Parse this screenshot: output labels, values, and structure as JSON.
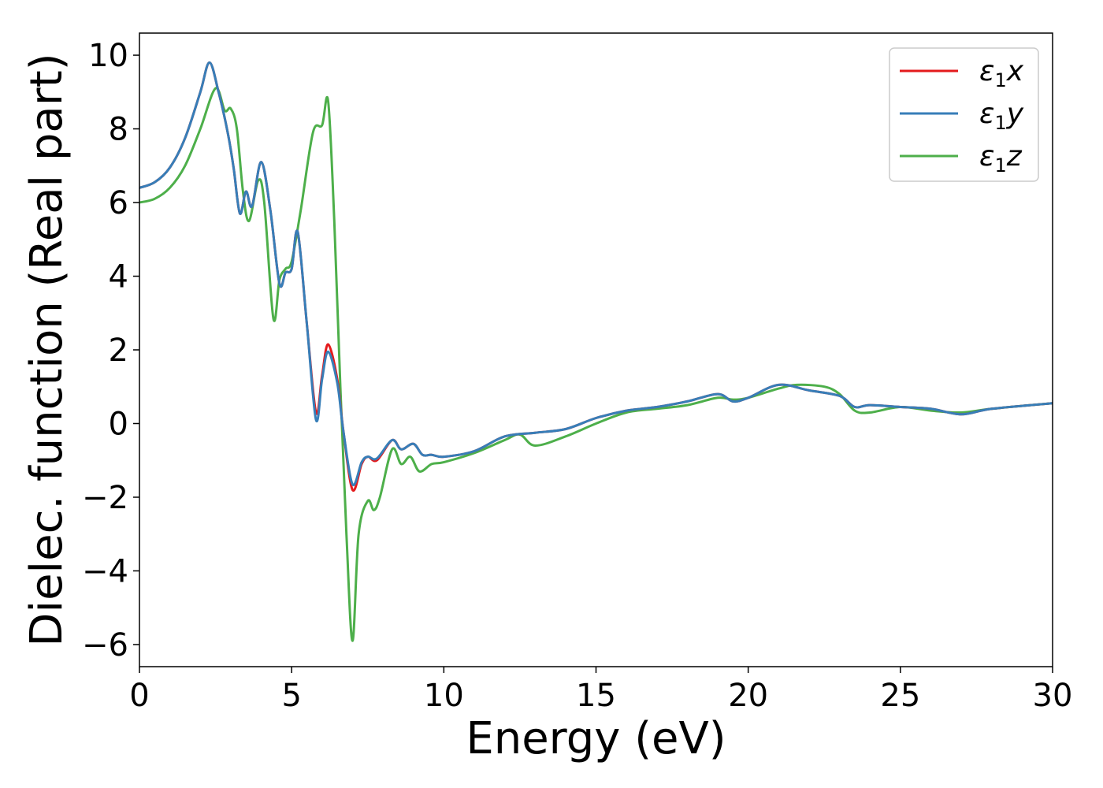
{
  "chart_data": {
    "type": "line",
    "xlabel": "Energy (eV)",
    "ylabel": "Dielec. function (Real part)",
    "xlim": [
      0,
      30
    ],
    "ylim": [
      -6.6,
      10.6
    ],
    "xticks": [
      0,
      5,
      10,
      15,
      20,
      25,
      30
    ],
    "xtick_labels": [
      "0",
      "5",
      "10",
      "15",
      "20",
      "25",
      "30"
    ],
    "yticks": [
      -6,
      -4,
      -2,
      0,
      2,
      4,
      6,
      8,
      10
    ],
    "ytick_labels": [
      "−6",
      "−4",
      "−2",
      "0",
      "2",
      "4",
      "6",
      "8",
      "10"
    ],
    "grid": false,
    "legend_position": "top-right",
    "series": [
      {
        "name": "ε1x",
        "color": "#e41a1c",
        "x": [
          0,
          0.5,
          1.0,
          1.5,
          2.0,
          2.3,
          2.6,
          2.9,
          3.1,
          3.3,
          3.5,
          3.7,
          4.0,
          4.3,
          4.6,
          4.8,
          5.0,
          5.2,
          5.5,
          5.8,
          6.0,
          6.2,
          6.5,
          6.7,
          7.0,
          7.3,
          7.5,
          7.8,
          8.3,
          8.6,
          9.0,
          9.3,
          9.6,
          10,
          11,
          12,
          13,
          14,
          15,
          16,
          17,
          18,
          19,
          19.5,
          20,
          21,
          22,
          23,
          23.5,
          24,
          25,
          26,
          27,
          28,
          30
        ],
        "y": [
          6.4,
          6.55,
          6.95,
          7.75,
          9.0,
          9.8,
          9.0,
          7.9,
          6.9,
          5.7,
          6.3,
          5.9,
          7.1,
          5.8,
          3.8,
          4.1,
          4.2,
          5.2,
          2.7,
          0.3,
          1.3,
          2.15,
          1.2,
          -0.2,
          -1.8,
          -1.1,
          -0.9,
          -1.0,
          -0.45,
          -0.7,
          -0.55,
          -0.85,
          -0.85,
          -0.9,
          -0.75,
          -0.35,
          -0.25,
          -0.15,
          0.15,
          0.35,
          0.45,
          0.6,
          0.8,
          0.6,
          0.7,
          1.05,
          0.9,
          0.75,
          0.45,
          0.5,
          0.45,
          0.4,
          0.25,
          0.4,
          0.55
        ]
      },
      {
        "name": "ε1y",
        "color": "#377eb8",
        "x": [
          0,
          0.5,
          1.0,
          1.5,
          2.0,
          2.3,
          2.6,
          2.9,
          3.1,
          3.3,
          3.5,
          3.7,
          4.0,
          4.3,
          4.6,
          4.8,
          5.0,
          5.2,
          5.5,
          5.8,
          6.0,
          6.2,
          6.5,
          6.7,
          7.0,
          7.3,
          7.5,
          7.8,
          8.3,
          8.6,
          9.0,
          9.3,
          9.6,
          10,
          11,
          12,
          13,
          14,
          15,
          16,
          17,
          18,
          19,
          19.5,
          20,
          21,
          22,
          23,
          23.5,
          24,
          25,
          26,
          27,
          28,
          30
        ],
        "y": [
          6.4,
          6.55,
          6.95,
          7.75,
          9.0,
          9.8,
          9.0,
          7.9,
          6.9,
          5.7,
          6.3,
          5.9,
          7.1,
          5.8,
          3.8,
          4.1,
          4.2,
          5.2,
          2.7,
          0.1,
          1.2,
          1.95,
          1.1,
          -0.2,
          -1.65,
          -1.05,
          -0.9,
          -0.95,
          -0.45,
          -0.7,
          -0.55,
          -0.85,
          -0.85,
          -0.9,
          -0.75,
          -0.35,
          -0.25,
          -0.15,
          0.15,
          0.35,
          0.45,
          0.6,
          0.8,
          0.6,
          0.7,
          1.05,
          0.9,
          0.75,
          0.45,
          0.5,
          0.45,
          0.4,
          0.25,
          0.4,
          0.55
        ]
      },
      {
        "name": "ε1z",
        "color": "#4daf4a",
        "x": [
          0,
          0.5,
          1.0,
          1.5,
          2.0,
          2.5,
          2.8,
          3.0,
          3.2,
          3.4,
          3.6,
          3.9,
          4.1,
          4.4,
          4.6,
          4.8,
          5.0,
          5.3,
          5.7,
          6.0,
          6.2,
          6.4,
          6.6,
          6.8,
          7.0,
          7.2,
          7.5,
          7.7,
          7.9,
          8.3,
          8.6,
          8.9,
          9.2,
          9.6,
          10,
          11,
          12,
          12.5,
          13,
          14,
          15,
          16,
          17,
          18,
          19,
          19.5,
          20,
          21,
          21.6,
          22.5,
          23,
          23.5,
          24,
          25,
          26,
          27,
          28,
          30
        ],
        "y": [
          6.0,
          6.1,
          6.4,
          7.0,
          8.0,
          9.1,
          8.5,
          8.55,
          8.0,
          6.3,
          5.5,
          6.6,
          6.0,
          2.85,
          3.9,
          4.2,
          4.4,
          5.8,
          7.9,
          8.1,
          8.75,
          5.5,
          1.0,
          -3.0,
          -5.9,
          -3.0,
          -2.1,
          -2.35,
          -2.0,
          -0.7,
          -1.1,
          -0.9,
          -1.3,
          -1.1,
          -1.05,
          -0.8,
          -0.45,
          -0.3,
          -0.6,
          -0.35,
          0.0,
          0.3,
          0.4,
          0.5,
          0.7,
          0.65,
          0.7,
          0.95,
          1.05,
          1.0,
          0.8,
          0.35,
          0.3,
          0.45,
          0.35,
          0.3,
          0.4,
          0.55
        ]
      }
    ]
  }
}
